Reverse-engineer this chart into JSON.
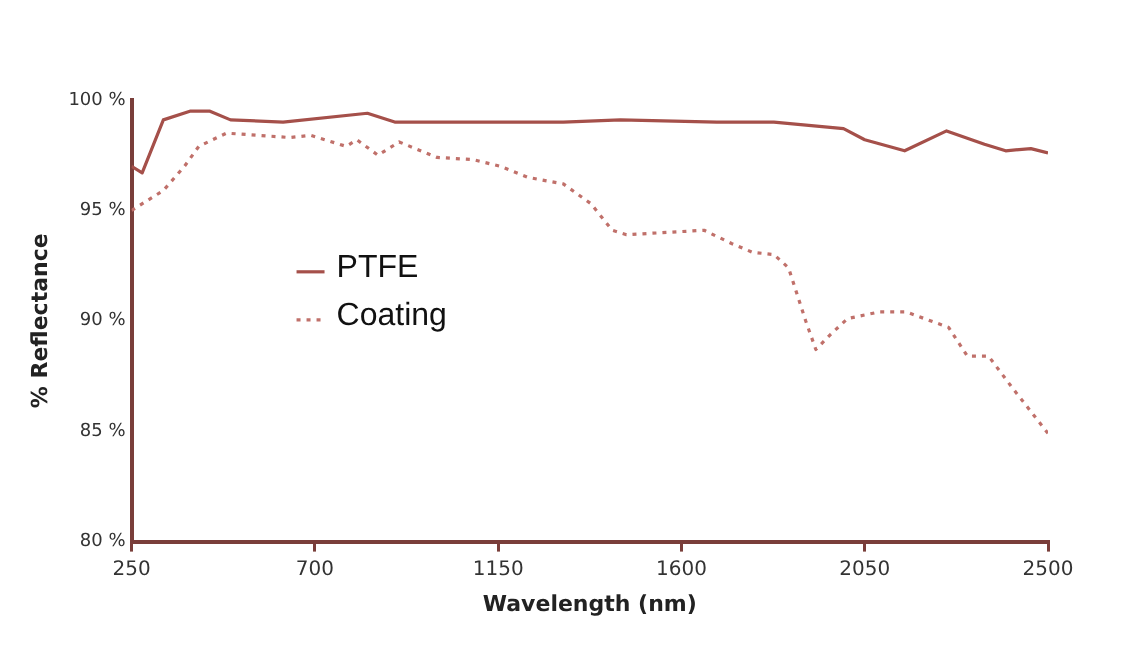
{
  "chart_data": {
    "type": "line",
    "xlabel": "Wavelength (nm)",
    "ylabel": "% Reflectance",
    "xlim": [
      250,
      2500
    ],
    "xticks": [
      250,
      700,
      1150,
      1600,
      2050,
      2500
    ],
    "ylim": [
      80,
      100
    ],
    "yticks": [
      {
        "value": 80,
        "label": "80 %"
      },
      {
        "value": 85,
        "label": "85 %"
      },
      {
        "value": 90,
        "label": "90 %"
      },
      {
        "value": 95,
        "label": "95 %"
      },
      {
        "value": 100,
        "label": "100 %"
      }
    ],
    "grid": false,
    "legend": "left",
    "marker": "none",
    "series": [
      {
        "name": "PTFE",
        "color": "#a5504a",
        "line_style": "solid",
        "x": [
          250,
          276,
          328,
          395,
          441,
          493,
          622,
          829,
          896,
          1000,
          1310,
          1450,
          1687,
          1827,
          1998,
          2050,
          2148,
          2251,
          2344,
          2396,
          2458,
          2500
        ],
        "values": [
          97.0,
          96.7,
          99.1,
          99.5,
          99.5,
          99.1,
          99.0,
          99.4,
          99.0,
          99.0,
          99.0,
          99.1,
          99.0,
          99.0,
          98.7,
          98.2,
          97.7,
          98.6,
          98.0,
          97.7,
          97.8,
          97.6
        ]
      },
      {
        "name": "Coating",
        "color": "#c0706a",
        "line_style": "dotted",
        "x": [
          250,
          328,
          380,
          415,
          483,
          638,
          690,
          777,
          803,
          855,
          907,
          1000,
          1088,
          1155,
          1222,
          1310,
          1378,
          1430,
          1465,
          1656,
          1723,
          1775,
          1827,
          1863,
          1905,
          1930,
          1967,
          2008,
          2085,
          2152,
          2256,
          2302,
          2354,
          2411,
          2500
        ],
        "values": [
          95.0,
          95.9,
          97.0,
          97.9,
          98.5,
          98.3,
          98.4,
          97.9,
          98.2,
          97.5,
          98.1,
          97.4,
          97.3,
          97.0,
          96.5,
          96.2,
          95.3,
          94.1,
          93.9,
          94.1,
          93.5,
          93.1,
          93.0,
          92.4,
          90.0,
          88.7,
          89.4,
          90.1,
          90.4,
          90.4,
          89.7,
          88.4,
          88.4,
          87.0,
          84.9
        ]
      }
    ]
  }
}
